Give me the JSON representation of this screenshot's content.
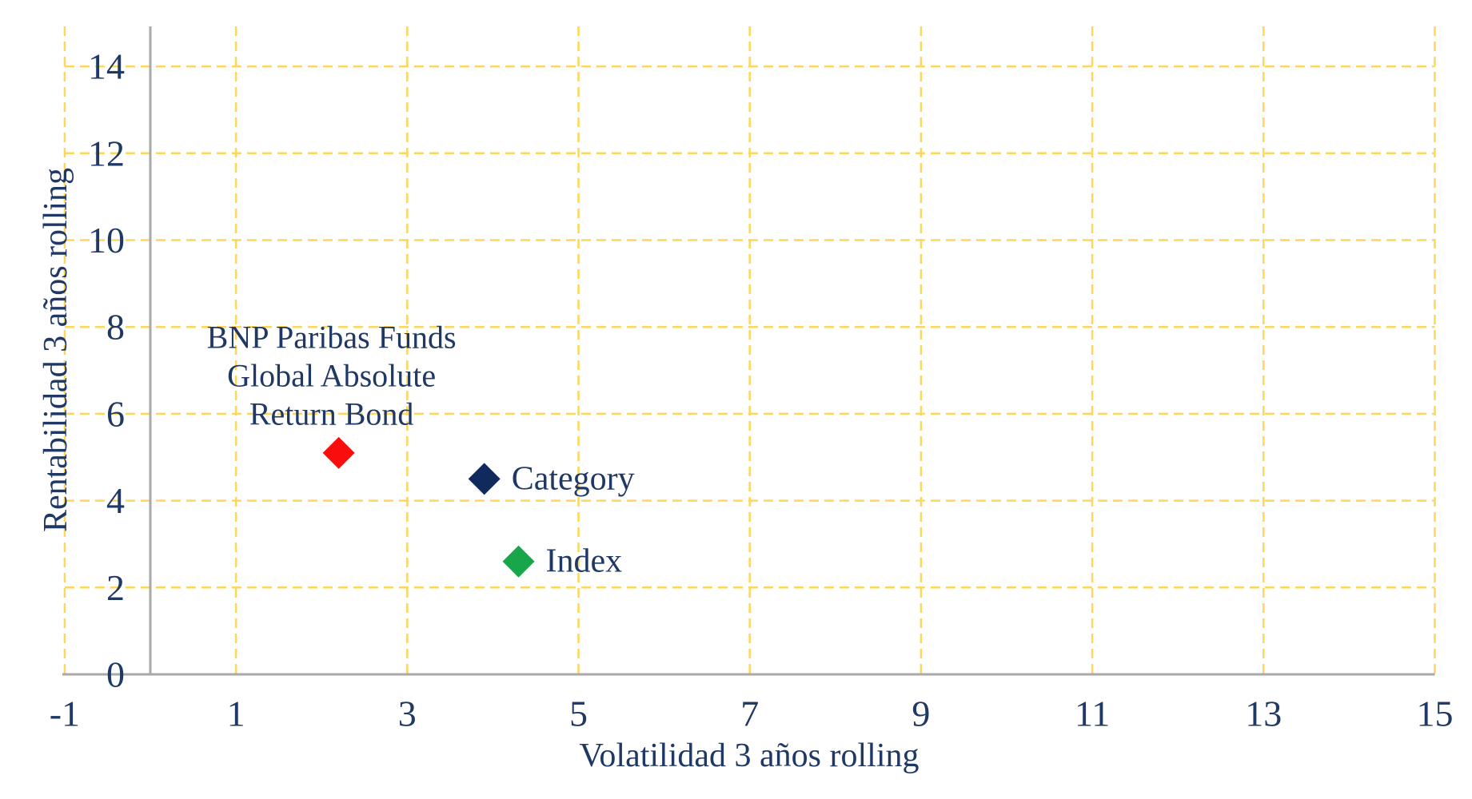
{
  "chart_data": {
    "type": "scatter",
    "title": "",
    "xlabel": "Volatilidad 3 años rolling",
    "ylabel": "Rentabilidad 3 años rolling",
    "xlim": [
      -1,
      15
    ],
    "ylim": [
      0,
      14.92
    ],
    "xticks": [
      -1,
      1,
      3,
      5,
      7,
      9,
      11,
      13,
      15
    ],
    "yticks": [
      0,
      2,
      4,
      6,
      8,
      10,
      12,
      14
    ],
    "grid": {
      "visible": true,
      "style": "dashed",
      "color": "#FFD65C"
    },
    "axis_color": "#A9A9A9",
    "text_color": "#1F3864",
    "legend_position": "none",
    "series": [
      {
        "name": "BNP Paribas Funds Global Absolute Return Bond",
        "x": 2.2,
        "y": 5.1,
        "marker": "diamond",
        "color": "#F90D0D",
        "label_lines": [
          "BNP Paribas Funds",
          "Global Absolute",
          "Return Bond"
        ],
        "label_placement": "above"
      },
      {
        "name": "Category",
        "x": 3.9,
        "y": 4.5,
        "marker": "diamond",
        "color": "#112A5E",
        "label_lines": [
          "Category"
        ],
        "label_placement": "right"
      },
      {
        "name": "Index",
        "x": 4.3,
        "y": 2.6,
        "marker": "diamond",
        "color": "#18A64B",
        "label_lines": [
          "Index"
        ],
        "label_placement": "right"
      }
    ]
  }
}
